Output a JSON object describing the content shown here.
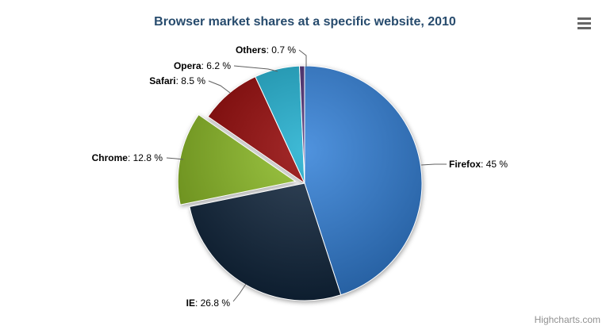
{
  "chart_data": {
    "type": "pie",
    "title": "Browser market shares at a specific website, 2010",
    "label_format": "{name}: {value} %",
    "legend": "none",
    "start_angle_deg": 0,
    "direction": "clockwise",
    "border_color": "#ffffff",
    "slices": [
      {
        "name": "Firefox",
        "value": 45,
        "color": "#2f7ed8",
        "sliced": false
      },
      {
        "name": "IE",
        "value": 26.8,
        "color": "#0d233a",
        "sliced": false
      },
      {
        "name": "Chrome",
        "value": 12.8,
        "color": "#8bbc21",
        "sliced": true
      },
      {
        "name": "Safari",
        "value": 8.5,
        "color": "#910000",
        "sliced": false
      },
      {
        "name": "Opera",
        "value": 6.2,
        "color": "#1aadce",
        "sliced": false
      },
      {
        "name": "Others",
        "value": 0.7,
        "color": "#492970",
        "sliced": false
      }
    ]
  },
  "title": "Browser market shares at a specific website, 2010",
  "title_color": "#274b6d",
  "credits": "Highcharts.com",
  "connector_color": "#606060",
  "menu_icon_color": "#666666"
}
